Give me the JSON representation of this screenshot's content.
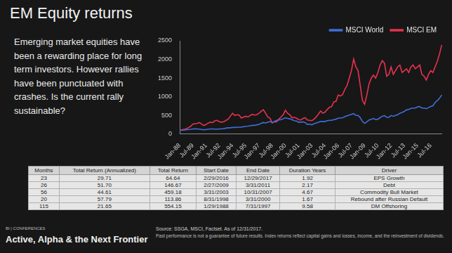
{
  "slide": {
    "title": "EM Equity returns",
    "text": "Emerging market equities have been a rewarding place for long term investors. However rallies have been punctuated with crashes. Is the current rally sustainable?",
    "footer_brand": "BI | CONFERENCES",
    "footer_title": "Active, Alpha & the Next Frontier",
    "source": "Source: SSGA, MSCI, Factset.  As of 12/31/2017.",
    "disclaimer": "Past performance is not a guarantee of future results.  Index returns reflect capital gains and losses, income, and the reinvestment of dividends."
  },
  "chart_data": {
    "type": "line",
    "legend": "top-right",
    "grid": false,
    "ylim": [
      0,
      2500
    ],
    "yticks": [
      0,
      500,
      1000,
      1500,
      2000,
      2500
    ],
    "categories": [
      "Jan-88",
      null,
      null,
      null,
      null,
      null,
      "Jul-89",
      null,
      null,
      null,
      null,
      null,
      "Jan-91",
      null,
      null,
      null,
      null,
      null,
      "Jul-92",
      null,
      null,
      null,
      null,
      null,
      "Jan-94",
      null,
      null,
      null,
      null,
      null,
      "Jul-95",
      null,
      null,
      null,
      null,
      null,
      "Jan-97",
      null,
      null,
      null,
      null,
      null,
      "Jul-98",
      null,
      null,
      null,
      null,
      null,
      "Jan-00",
      null,
      null,
      null,
      null,
      null,
      "Jul-01",
      null,
      null,
      null,
      null,
      null,
      "Jan-03",
      null,
      null,
      null,
      null,
      null,
      "Jul-04",
      null,
      null,
      null,
      null,
      null,
      "Jan-06",
      null,
      null,
      null,
      null,
      null,
      "Jul-07",
      null,
      null,
      null,
      null,
      null,
      "Jan-09",
      null,
      null,
      null,
      null,
      null,
      "Jul-10",
      null,
      null,
      null,
      null,
      null,
      "Jan-12",
      null,
      null,
      null,
      null,
      null,
      "Jul-13",
      null,
      null,
      null,
      null,
      null,
      "Jan-15",
      null,
      null,
      null,
      null,
      null,
      "Jul-16",
      null,
      null,
      null,
      null,
      null
    ],
    "series": [
      {
        "name": "MSCI World",
        "color": "#3f6fd8",
        "values": [
          100,
          105,
          110,
          115,
          125,
          130,
          140,
          145,
          140,
          135,
          125,
          115,
          125,
          135,
          140,
          140,
          135,
          135,
          140,
          140,
          150,
          160,
          170,
          170,
          180,
          180,
          185,
          185,
          185,
          200,
          210,
          215,
          225,
          235,
          235,
          250,
          260,
          290,
          310,
          300,
          320,
          340,
          310,
          340,
          370,
          380,
          390,
          410,
          440,
          420,
          410,
          390,
          360,
          350,
          320,
          320,
          330,
          310,
          260,
          270,
          250,
          280,
          300,
          320,
          340,
          340,
          340,
          360,
          370,
          370,
          390,
          400,
          430,
          430,
          440,
          470,
          490,
          510,
          530,
          550,
          500,
          500,
          440,
          340,
          290,
          330,
          380,
          400,
          420,
          390,
          400,
          440,
          480,
          500,
          450,
          450,
          500,
          480,
          500,
          520,
          560,
          580,
          610,
          650,
          660,
          690,
          700,
          700,
          730,
          740,
          700,
          700,
          680,
          710,
          740,
          760,
          850,
          900,
          960,
          1050
        ]
      },
      {
        "name": "MSCI EM",
        "color": "#e8324e",
        "values": [
          100,
          115,
          130,
          145,
          175,
          210,
          270,
          280,
          290,
          310,
          270,
          230,
          260,
          300,
          320,
          310,
          360,
          370,
          330,
          320,
          330,
          370,
          400,
          480,
          560,
          500,
          520,
          510,
          430,
          460,
          480,
          460,
          500,
          530,
          510,
          520,
          560,
          610,
          654,
          560,
          460,
          430,
          300,
          330,
          330,
          400,
          460,
          520,
          640,
          560,
          520,
          440,
          450,
          430,
          390,
          380,
          420,
          440,
          380,
          370,
          360,
          400,
          460,
          540,
          620,
          560,
          590,
          660,
          720,
          740,
          860,
          880,
          1050,
          1020,
          1060,
          1200,
          1300,
          1500,
          1700,
          2010,
          1800,
          1700,
          1300,
          900,
          800,
          1050,
          1350,
          1500,
          1580,
          1500,
          1650,
          1850,
          1970,
          1900,
          1550,
          1600,
          1800,
          1600,
          1700,
          1800,
          1850,
          1650,
          1700,
          1750,
          1650,
          1800,
          1850,
          1750,
          1800,
          1850,
          1600,
          1550,
          1450,
          1600,
          1700,
          1650,
          1800,
          1950,
          2150,
          2390
        ]
      }
    ]
  },
  "table": {
    "header": [
      "Months",
      "Total Return (Annualized)",
      "Total Return",
      "Start Date",
      "End Date",
      "Duration Years",
      "Driver"
    ],
    "rows": [
      [
        "23",
        "29.71",
        "64.64",
        "2/29/2016",
        "12/29/2017",
        "1.92",
        "EPS Growth"
      ],
      [
        "26",
        "51.70",
        "146.67",
        "2/27/2009",
        "3/31/2011",
        "2.17",
        "Debt"
      ],
      [
        "56",
        "44.61",
        "459.18",
        "3/31/2003",
        "10/31/2007",
        "4.67",
        "Commodity Bull Market"
      ],
      [
        "20",
        "57.79",
        "113.86",
        "8/31/1998",
        "3/31/2000",
        "1.67",
        "Rebound after Russian Default"
      ],
      [
        "115",
        "21.65",
        "554.15",
        "1/29/1988",
        "7/31/1997",
        "9.58",
        "DM Offshoring"
      ]
    ]
  }
}
